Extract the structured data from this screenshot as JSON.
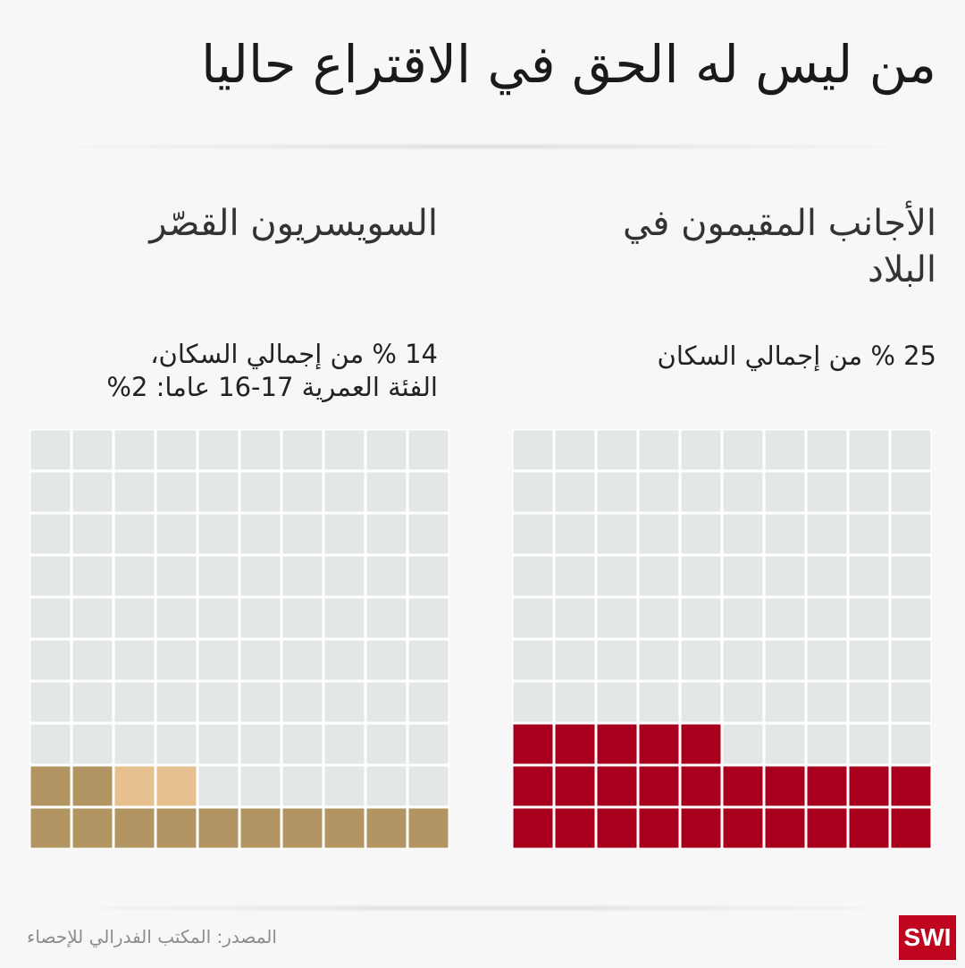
{
  "title": "من ليس له الحق في الاقتراع حاليا",
  "colors": {
    "grid_empty": "#e3e7e8",
    "grid_line": "#ffffff",
    "foreigners": "#a8001c",
    "swiss_abroad": "#b39564",
    "swiss_16_17": "#e6c08e",
    "logo_bg": "#c0051f"
  },
  "panels": {
    "foreigners": {
      "heading": "الأجانب المقيمون في البلاد",
      "sub": "25 % من إجمالي السكان"
    },
    "swiss": {
      "heading": "السويسريون القصّر",
      "sub_line1": "14 % من إجمالي السكان،",
      "sub_line2": "الفئة العمرية 17-16 عاما: 2%"
    }
  },
  "chart_data": [
    {
      "type": "waffle",
      "name": "الأجانب المقيمون في البلاد",
      "grid": [
        10,
        10
      ],
      "total": 100,
      "segments": [
        {
          "label": "25 % من إجمالي السكان",
          "value": 25,
          "color": "#a8001c"
        }
      ]
    },
    {
      "type": "waffle",
      "name": "السويسريون القصّر",
      "grid": [
        10,
        10
      ],
      "total": 100,
      "segments": [
        {
          "label": "14 % من إجمالي السكان،",
          "value": 12,
          "color": "#b39564"
        },
        {
          "label": "الفئة العمرية 17-16 عاما: 2%",
          "value": 2,
          "color": "#e6c08e"
        }
      ]
    }
  ],
  "footer": {
    "source": "المصدر: المكتب الفدرالي للإحصاء",
    "logo": "SWI"
  }
}
